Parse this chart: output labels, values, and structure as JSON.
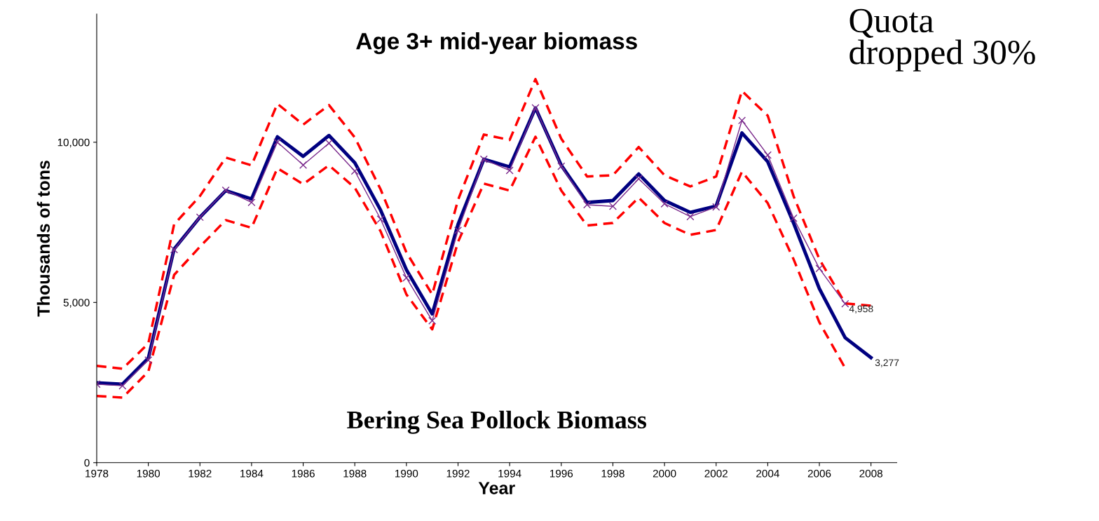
{
  "chart_data": {
    "type": "line",
    "title": "Age 3+ mid-year biomass",
    "subtitle": "Bering Sea Pollock Biomass",
    "xlabel": "Year",
    "ylabel": "Thousands of tons",
    "annotations": [
      "Quota\ndropped 30%"
    ],
    "xlim": [
      1978,
      2009
    ],
    "xticks": [
      1978,
      1980,
      1982,
      1984,
      1986,
      1988,
      1990,
      1992,
      1994,
      1996,
      1998,
      2000,
      2002,
      2004,
      2006,
      2008
    ],
    "ylim": [
      0,
      14000
    ],
    "yticks": [
      0,
      {
        "value": 5000,
        "label": "5,000"
      },
      {
        "value": 10000,
        "label": "10,000"
      }
    ],
    "grid": false,
    "legend": false,
    "series": [
      {
        "color": "#ff0000",
        "line_style": "dashed",
        "marker": "none",
        "x": [
          1978,
          1979,
          1980,
          1981,
          1982,
          1983,
          1984,
          1985,
          1986,
          1987,
          1988,
          1989,
          1990,
          1991,
          1992,
          1993,
          1994,
          1995,
          1996,
          1997,
          1998,
          1999,
          2000,
          2001,
          2002,
          2003,
          2004,
          2005,
          2006,
          2007,
          2008
        ],
        "values": [
          3020,
          2930,
          3720,
          7440,
          8320,
          9520,
          9280,
          11200,
          10550,
          11160,
          10150,
          8530,
          6560,
          5250,
          8200,
          10240,
          10070,
          11970,
          10110,
          8930,
          8970,
          9850,
          8970,
          8620,
          8930,
          11600,
          10830,
          8320,
          6350,
          4970,
          4900
        ]
      },
      {
        "color": "#ff0000",
        "line_style": "dashed",
        "marker": "none",
        "x": [
          1978,
          1979,
          1980,
          1981,
          1982,
          1983,
          1984,
          1985,
          1986,
          1987,
          1988,
          1989,
          1990,
          1991,
          1992,
          1993,
          1994,
          1995,
          1996,
          1997,
          1998,
          1999,
          2000,
          2001,
          2002,
          2003,
          2004,
          2005,
          2006,
          2007
        ],
        "values": [
          2080,
          2030,
          2840,
          5860,
          6740,
          7570,
          7330,
          9190,
          8690,
          9280,
          8580,
          7220,
          5250,
          4160,
          6890,
          8710,
          8490,
          10170,
          8490,
          7400,
          7480,
          8270,
          7480,
          7110,
          7260,
          9080,
          8100,
          6350,
          4380,
          2950
        ]
      },
      {
        "color": "#000080",
        "line_style": "solid",
        "marker": "none",
        "x": [
          1978,
          1979,
          1980,
          1981,
          1982,
          1983,
          1984,
          1985,
          1986,
          1987,
          1988,
          1989,
          1990,
          1991,
          1992,
          1993,
          1994,
          1995,
          1996,
          1997,
          1998,
          1999,
          2000,
          2001,
          2002,
          2003,
          2004,
          2005,
          2006,
          2007,
          2008
        ],
        "values": [
          2490,
          2450,
          3260,
          6670,
          7660,
          8490,
          8230,
          10170,
          9560,
          10210,
          9360,
          7880,
          6020,
          4640,
          7440,
          9470,
          9230,
          11070,
          9280,
          8120,
          8180,
          9010,
          8180,
          7810,
          8010,
          10290,
          9390,
          7480,
          5430,
          3900,
          3277
        ],
        "value_labels": [
          null,
          null,
          null,
          null,
          null,
          null,
          null,
          null,
          null,
          null,
          null,
          null,
          null,
          null,
          null,
          null,
          null,
          null,
          null,
          null,
          null,
          null,
          null,
          null,
          null,
          null,
          null,
          null,
          null,
          null,
          "3,277"
        ]
      },
      {
        "color": "#7b2a8c",
        "line_style": "solid",
        "marker": "cross",
        "x": [
          1978,
          1979,
          1980,
          1981,
          1982,
          1983,
          1984,
          1985,
          1986,
          1987,
          1988,
          1989,
          1990,
          1991,
          1992,
          1993,
          1994,
          1995,
          1996,
          1997,
          1998,
          1999,
          2000,
          2001,
          2002,
          2003,
          2004,
          2005,
          2006,
          2007
        ],
        "values": [
          2450,
          2400,
          3200,
          6650,
          7660,
          8500,
          8120,
          10000,
          9290,
          9970,
          9100,
          7600,
          5770,
          4430,
          7250,
          9470,
          9120,
          11070,
          9250,
          8050,
          8000,
          8860,
          8080,
          7680,
          7980,
          10680,
          9600,
          7630,
          6060,
          4958
        ],
        "value_labels": [
          null,
          null,
          null,
          null,
          null,
          null,
          null,
          null,
          null,
          null,
          null,
          null,
          null,
          null,
          null,
          null,
          null,
          null,
          null,
          null,
          null,
          null,
          null,
          null,
          null,
          null,
          null,
          null,
          null,
          "4,958"
        ]
      }
    ]
  }
}
